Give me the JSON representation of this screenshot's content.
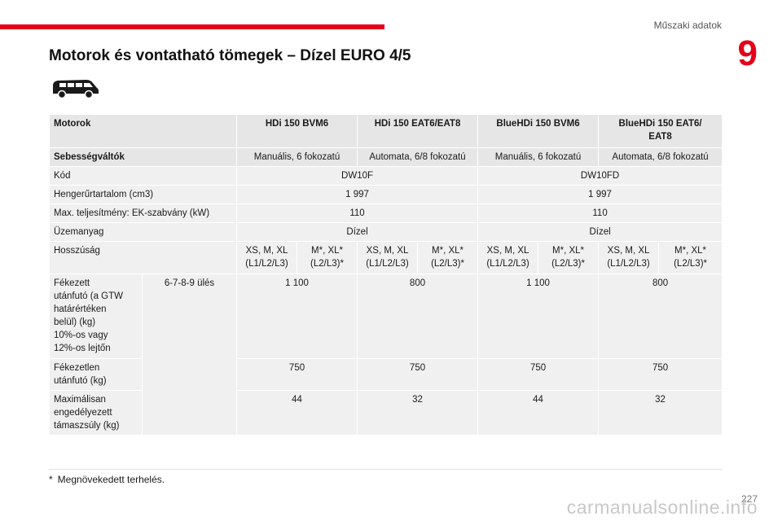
{
  "header": {
    "section": "Műszaki adatok",
    "chapter": "9"
  },
  "title": "Motorok és vontatható tömegek – Dízel EURO 4/5",
  "vehicle_icon": "van-icon",
  "table": {
    "header": {
      "label": "Motorok",
      "engines": [
        "HDi 150 BVM6",
        "HDi 150 EAT6/EAT8",
        "BlueHDi 150 BVM6",
        "BlueHDi 150 EAT6/\nEAT8"
      ]
    },
    "gearbox": {
      "label": "Sebességváltók",
      "values": [
        "Manuális, 6 fokozatú",
        "Automata, 6/8 fokozatú",
        "Manuális, 6 fokozatú",
        "Automata, 6/8 fokozatú"
      ]
    },
    "code": {
      "label": "Kód",
      "values": [
        "DW10F",
        "DW10FD"
      ]
    },
    "displacement": {
      "label": "Hengerűrtartalom (cm3)",
      "values": [
        "1 997",
        "1 997"
      ]
    },
    "power": {
      "label": "Max. teljesítmény: EK-szabvány (kW)",
      "values": [
        "110",
        "110"
      ]
    },
    "fuel": {
      "label": "Üzemanyag",
      "values": [
        "Dízel",
        "Dízel"
      ]
    },
    "length": {
      "label": "Hosszúság",
      "values": [
        "XS, M, XL\n(L1/L2/L3)",
        "M*, XL*\n(L2/L3)*",
        "XS, M, XL\n(L1/L2/L3)",
        "M*, XL*\n(L2/L3)*",
        "XS, M, XL\n(L1/L2/L3)",
        "M*, XL*\n(L2/L3)*",
        "XS, M, XL\n(L1/L2/L3)",
        "M*, XL*\n(L2/L3)*"
      ]
    },
    "seats": "6-7-8-9 ülés",
    "braked": {
      "label": "Fékezett\nutánfutó (a GTW\nhatárértéken\nbelül) (kg)\n10%-os vagy\n12%-os lejtőn",
      "values": [
        "1 100",
        "800",
        "1 100",
        "800"
      ]
    },
    "unbraked": {
      "label": "Fékezetlen\nutánfutó (kg)",
      "values": [
        "750",
        "750",
        "750",
        "750"
      ]
    },
    "noseweight": {
      "label": "Maximálisan\nengedélyezett\ntámaszsúly (kg)",
      "values": [
        "44",
        "32",
        "44",
        "32"
      ]
    }
  },
  "footnote": {
    "mark": "*",
    "text": "Megnövekedett terhelés."
  },
  "page_number": "227",
  "watermark": "carmanualsonline.info"
}
